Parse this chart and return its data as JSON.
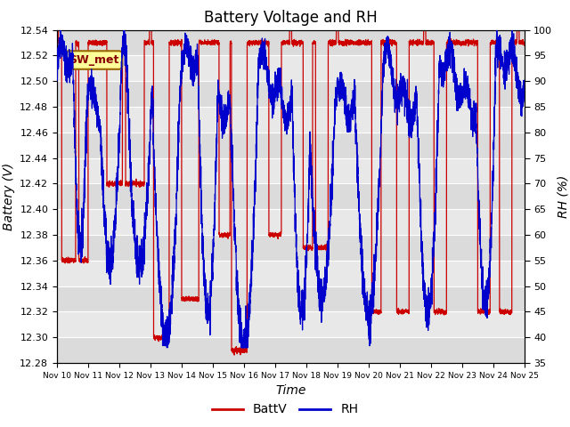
{
  "title": "Battery Voltage and RH",
  "xlabel": "Time",
  "ylabel_left": "Battery (V)",
  "ylabel_right": "RH (%)",
  "ylim_left": [
    12.28,
    12.54
  ],
  "ylim_right": [
    35,
    100
  ],
  "yticks_left": [
    12.28,
    12.3,
    12.32,
    12.34,
    12.36,
    12.38,
    12.4,
    12.42,
    12.44,
    12.46,
    12.48,
    12.5,
    12.52,
    12.54
  ],
  "yticks_right": [
    35,
    40,
    45,
    50,
    55,
    60,
    65,
    70,
    75,
    80,
    85,
    90,
    95,
    100
  ],
  "xtick_labels": [
    "Nov 10",
    "Nov 11",
    "Nov 12",
    "Nov 13",
    "Nov 14",
    "Nov 15",
    "Nov 16",
    "Nov 17",
    "Nov 18",
    "Nov 19",
    "Nov 20",
    "Nov 21",
    "Nov 22",
    "Nov 23",
    "Nov 24",
    "Nov 25"
  ],
  "batt_color": "#cc0000",
  "rh_color": "#0000cc",
  "annotation_text": "SW_met",
  "annotation_bg": "#ffff99",
  "annotation_border": "#996600",
  "bg_color": "#ffffff",
  "plot_bg_color": "#e8e8e8",
  "grid_color": "#ffffff",
  "title_fontsize": 12,
  "label_fontsize": 10,
  "tick_fontsize": 8,
  "legend_fontsize": 10
}
